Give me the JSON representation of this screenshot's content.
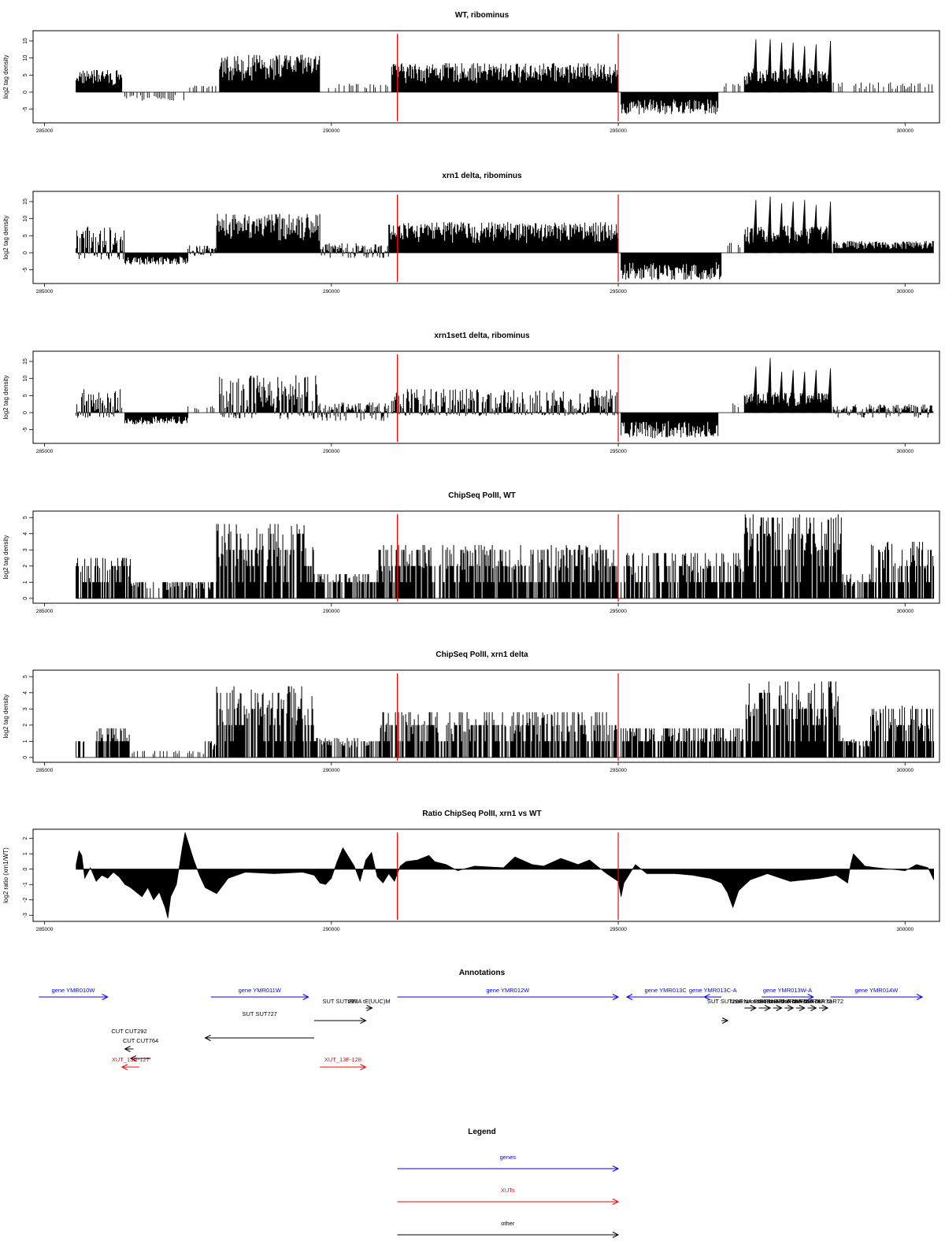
{
  "chart_data": [
    {
      "type": "bar",
      "title": "WT, ribominus",
      "ylabel": "log2 tag density",
      "ylim": [
        -9,
        18
      ],
      "yticks": [
        "-5",
        "0",
        "5",
        "10",
        "15"
      ],
      "xlim": [
        284800,
        300600
      ],
      "xticks": [
        "285000",
        "290000",
        "295000",
        "300000"
      ],
      "markers": [
        291150,
        295000
      ],
      "segments": [
        {
          "from": 285550,
          "to": 286350,
          "min": 0,
          "max": 6.5
        },
        {
          "from": 286400,
          "to": 287500,
          "min": -2.5,
          "max": 0
        },
        {
          "from": 287500,
          "to": 288000,
          "min": 0,
          "max": 2
        },
        {
          "from": 288050,
          "to": 289800,
          "min": 0,
          "max": 11
        },
        {
          "from": 289800,
          "to": 291000,
          "min": 0,
          "max": 2.5
        },
        {
          "from": 291050,
          "to": 295000,
          "min": 0,
          "max": 8.5
        },
        {
          "from": 295050,
          "to": 296750,
          "min": -6.5,
          "max": 0
        },
        {
          "from": 296850,
          "to": 297150,
          "min": 0,
          "max": 3
        },
        {
          "from": 297200,
          "to": 298700,
          "min": 0,
          "max": 7
        },
        {
          "from": 298750,
          "to": 300500,
          "min": 0,
          "max": 3
        }
      ],
      "peaks": [
        {
          "x": 297400,
          "value": 15.5
        },
        {
          "x": 297650,
          "value": 15.5
        },
        {
          "x": 297850,
          "value": 14.5
        },
        {
          "x": 298050,
          "value": 14.5
        },
        {
          "x": 298250,
          "value": 13.5
        },
        {
          "x": 298450,
          "value": 14
        },
        {
          "x": 298700,
          "value": 15
        }
      ]
    },
    {
      "type": "bar",
      "title": "xrn1 delta, ribominus",
      "ylabel": "log2 tag density",
      "ylim": [
        -9,
        18
      ],
      "yticks": [
        "-5",
        "0",
        "5",
        "10",
        "15"
      ],
      "xlim": [
        284800,
        300600
      ],
      "xticks": [
        "285000",
        "290000",
        "295000",
        "300000"
      ],
      "markers": [
        291150,
        295000
      ],
      "segments": [
        {
          "from": 285550,
          "to": 286400,
          "min": -2,
          "max": 8
        },
        {
          "from": 286400,
          "to": 287500,
          "min": -3.5,
          "max": 0
        },
        {
          "from": 287500,
          "to": 288000,
          "min": -1,
          "max": 2.5
        },
        {
          "from": 288000,
          "to": 289800,
          "min": 0,
          "max": 11.5
        },
        {
          "from": 289800,
          "to": 291000,
          "min": -1.5,
          "max": 3
        },
        {
          "from": 291000,
          "to": 295000,
          "min": 0,
          "max": 9
        },
        {
          "from": 295050,
          "to": 296800,
          "min": -8,
          "max": 0
        },
        {
          "from": 296850,
          "to": 297150,
          "min": 0,
          "max": 3
        },
        {
          "from": 297200,
          "to": 298700,
          "min": 0,
          "max": 8
        },
        {
          "from": 298750,
          "to": 300500,
          "min": 0,
          "max": 3.5
        }
      ],
      "peaks": [
        {
          "x": 297400,
          "value": 15.5
        },
        {
          "x": 297650,
          "value": 16.5
        },
        {
          "x": 297850,
          "value": 14.5
        },
        {
          "x": 298050,
          "value": 15
        },
        {
          "x": 298250,
          "value": 15.5
        },
        {
          "x": 298450,
          "value": 14
        },
        {
          "x": 298700,
          "value": 15
        }
      ]
    },
    {
      "type": "bar",
      "title": "xrn1set1 delta, ribominus",
      "ylabel": "log2 tag density",
      "ylim": [
        -9,
        18
      ],
      "yticks": [
        "-5",
        "0",
        "5",
        "10",
        "15"
      ],
      "xlim": [
        284800,
        300600
      ],
      "xticks": [
        "285000",
        "290000",
        "295000",
        "300000"
      ],
      "markers": [
        291150,
        295000
      ],
      "segments": [
        {
          "from": 285550,
          "to": 286350,
          "min": -1.5,
          "max": 7
        },
        {
          "from": 286400,
          "to": 287500,
          "min": -3.5,
          "max": 0
        },
        {
          "from": 287500,
          "to": 288000,
          "min": 0,
          "max": 2
        },
        {
          "from": 288050,
          "to": 289800,
          "min": -2,
          "max": 11
        },
        {
          "from": 289800,
          "to": 291000,
          "min": -2.5,
          "max": 3
        },
        {
          "from": 291050,
          "to": 295000,
          "min": -1,
          "max": 7
        },
        {
          "from": 295050,
          "to": 296750,
          "min": -7.5,
          "max": 0
        },
        {
          "from": 296850,
          "to": 297150,
          "min": 0,
          "max": 3
        },
        {
          "from": 297200,
          "to": 298700,
          "min": 0,
          "max": 6
        },
        {
          "from": 298750,
          "to": 300500,
          "min": -1.5,
          "max": 2.5
        }
      ],
      "peaks": [
        {
          "x": 297400,
          "value": 13.5
        },
        {
          "x": 297650,
          "value": 16
        },
        {
          "x": 297850,
          "value": 12
        },
        {
          "x": 298050,
          "value": 12.5
        },
        {
          "x": 298250,
          "value": 12
        },
        {
          "x": 298450,
          "value": 12.5
        },
        {
          "x": 298700,
          "value": 13
        }
      ]
    },
    {
      "type": "bar",
      "title": "ChipSeq PolII, WT",
      "ylabel": "log2 tag density",
      "ylim": [
        -0.3,
        5.4
      ],
      "yticks": [
        "0",
        "1",
        "2",
        "3",
        "4",
        "5"
      ],
      "xlim": [
        284800,
        300600
      ],
      "xticks": [
        "285000",
        "290000",
        "295000",
        "300000"
      ],
      "markers": [
        291150,
        295000
      ],
      "segments": [
        {
          "from": 285550,
          "to": 286500,
          "min": 0,
          "max": 2.5
        },
        {
          "from": 286500,
          "to": 287500,
          "min": 0,
          "max": 1
        },
        {
          "from": 287500,
          "to": 288000,
          "min": 0,
          "max": 1
        },
        {
          "from": 288000,
          "to": 289700,
          "min": 0,
          "max": 4.6
        },
        {
          "from": 289700,
          "to": 290800,
          "min": 0,
          "max": 1.5
        },
        {
          "from": 290800,
          "to": 295000,
          "min": 0,
          "max": 3.3
        },
        {
          "from": 295050,
          "to": 297200,
          "min": 0,
          "max": 2.8
        },
        {
          "from": 297200,
          "to": 298900,
          "min": 0,
          "max": 5.2
        },
        {
          "from": 298900,
          "to": 299400,
          "min": 0,
          "max": 1.5
        },
        {
          "from": 299400,
          "to": 300500,
          "min": 0,
          "max": 3.5
        }
      ],
      "peaks": []
    },
    {
      "type": "bar",
      "title": "ChipSeq PolII, xrn1 delta",
      "ylabel": "log2 tag density",
      "ylim": [
        -0.3,
        5.4
      ],
      "yticks": [
        "0",
        "1",
        "2",
        "3",
        "4",
        "5"
      ],
      "xlim": [
        284800,
        300600
      ],
      "xticks": [
        "285000",
        "290000",
        "295000",
        "300000"
      ],
      "markers": [
        291150,
        295000
      ],
      "segments": [
        {
          "from": 285550,
          "to": 285700,
          "min": 0,
          "max": 1.3
        },
        {
          "from": 285900,
          "to": 286500,
          "min": 0,
          "max": 1.8
        },
        {
          "from": 286500,
          "to": 287800,
          "min": 0,
          "max": 0.4
        },
        {
          "from": 287800,
          "to": 288000,
          "min": 0,
          "max": 1
        },
        {
          "from": 288000,
          "to": 289700,
          "min": 0,
          "max": 4.4
        },
        {
          "from": 289700,
          "to": 290800,
          "min": 0,
          "max": 1.2
        },
        {
          "from": 290800,
          "to": 295000,
          "min": 0,
          "max": 2.8
        },
        {
          "from": 295050,
          "to": 297200,
          "min": 0,
          "max": 1.8
        },
        {
          "from": 297200,
          "to": 298900,
          "min": 0,
          "max": 4.7
        },
        {
          "from": 298900,
          "to": 299400,
          "min": 0,
          "max": 1.2
        },
        {
          "from": 299400,
          "to": 300500,
          "min": 0,
          "max": 3.2
        }
      ],
      "peaks": []
    },
    {
      "type": "area",
      "title": "Ratio ChipSeq PolII, xrn1 vs WT",
      "ylabel": "log2 ratio (xrn1/WT)",
      "ylim": [
        -3.4,
        2.6
      ],
      "yticks": [
        "-3",
        "-2",
        "-1",
        "0",
        "1",
        "2"
      ],
      "xlim": [
        284800,
        300600
      ],
      "xticks": [
        "285000",
        "290000",
        "295000",
        "300000"
      ],
      "markers": [
        291150,
        295000
      ],
      "x": [
        285550,
        285600,
        285650,
        285700,
        285800,
        285900,
        286000,
        286100,
        286200,
        286300,
        286400,
        286500,
        286600,
        286700,
        286800,
        286900,
        287000,
        287100,
        287150,
        287200,
        287300,
        287400,
        287450,
        287500,
        287600,
        287700,
        287800,
        288000,
        288200,
        288500,
        289000,
        289500,
        289700,
        289800,
        289900,
        290000,
        290100,
        290200,
        290300,
        290400,
        290500,
        290600,
        290700,
        290800,
        290900,
        291000,
        291100,
        291200,
        291300,
        291500,
        291700,
        291800,
        292000,
        292200,
        292500,
        293000,
        293200,
        293500,
        293700,
        294000,
        294300,
        294500,
        294800,
        295000,
        295050,
        295100,
        295200,
        295300,
        295500,
        296000,
        296300,
        296600,
        296800,
        296900,
        297000,
        297100,
        297300,
        297600,
        298000,
        298500,
        298800,
        299000,
        299050,
        299100,
        299200,
        299300,
        299500,
        300000,
        300200,
        300400,
        300500
      ],
      "values": [
        0.3,
        1.2,
        0.9,
        -0.6,
        0.1,
        -0.8,
        -0.4,
        -0.6,
        -0.2,
        -0.5,
        -1.0,
        -1.2,
        -1.5,
        -1.8,
        -1.2,
        -2.0,
        -1.5,
        -2.5,
        -3.2,
        -1.8,
        -1.0,
        1.4,
        2.4,
        1.8,
        0.6,
        -0.4,
        -1.2,
        -1.6,
        -0.6,
        -0.2,
        -0.3,
        -0.2,
        -0.4,
        -0.9,
        -1.0,
        -0.6,
        0.5,
        1.4,
        0.8,
        0.2,
        -0.8,
        0.6,
        1.1,
        -0.5,
        -0.9,
        -0.3,
        -0.8,
        0.2,
        0.5,
        0.6,
        0.9,
        0.5,
        0.3,
        -0.1,
        0.2,
        0.1,
        0.8,
        0.3,
        0.2,
        0.7,
        0.3,
        0.6,
        -0.3,
        -0.8,
        -1.8,
        -0.9,
        -0.3,
        0.3,
        -0.3,
        -0.3,
        -0.4,
        -0.6,
        -0.9,
        -1.5,
        -2.5,
        -1.4,
        -0.7,
        -0.3,
        -0.8,
        -0.6,
        -0.4,
        -0.9,
        0.3,
        1.0,
        0.6,
        0.2,
        0.1,
        -0.1,
        0.3,
        0.1,
        -0.7
      ]
    }
  ],
  "annotations": {
    "title": "Annotations",
    "items": [
      {
        "label": "gene YMR010W",
        "kind": "gene",
        "start": 284900,
        "end": 286100,
        "row": 0,
        "direction": "right",
        "labelRow": 0
      },
      {
        "label": "gene YMR011W",
        "kind": "gene",
        "start": 287900,
        "end": 289600,
        "row": 0,
        "direction": "right",
        "labelRow": 0
      },
      {
        "label": "gene YMR012W",
        "kind": "gene",
        "start": 291150,
        "end": 295000,
        "row": 0,
        "direction": "right",
        "labelRow": 0
      },
      {
        "label": "gene YMR013C",
        "kind": "gene",
        "start": 295150,
        "end": 296500,
        "row": 0,
        "direction": "left",
        "labelRow": 0
      },
      {
        "label": "gene YMR013C-A",
        "kind": "gene",
        "start": 296500,
        "end": 296800,
        "row": 0,
        "direction": "left",
        "labelRow": 0
      },
      {
        "label": "gene YMR013W-A",
        "kind": "gene",
        "start": 297500,
        "end": 298400,
        "row": 0,
        "direction": "right",
        "labelRow": 0
      },
      {
        "label": "gene YMR014W",
        "kind": "gene",
        "start": 298700,
        "end": 300300,
        "row": 0,
        "direction": "right",
        "labelRow": 0
      },
      {
        "label": "tRNA tE(UUC)M",
        "kind": "other",
        "start": 290600,
        "end": 290700,
        "row": 1,
        "direction": "right",
        "labelRow": 1
      },
      {
        "label": "snoRNA snR78",
        "kind": "other",
        "start": 297200,
        "end": 297400,
        "row": 1,
        "direction": "right",
        "labelRow": 1
      },
      {
        "label": "snoRNA snR77",
        "kind": "other",
        "start": 297450,
        "end": 297650,
        "row": 1,
        "direction": "right",
        "labelRow": 1
      },
      {
        "label": "snoRNA snR76",
        "kind": "other",
        "start": 297700,
        "end": 297850,
        "row": 1,
        "direction": "right",
        "labelRow": 1
      },
      {
        "label": "snoRNA snR75",
        "kind": "other",
        "start": 297900,
        "end": 298050,
        "row": 1,
        "direction": "right",
        "labelRow": 1
      },
      {
        "label": "snoRNA snR74",
        "kind": "other",
        "start": 298100,
        "end": 298250,
        "row": 1,
        "direction": "right",
        "labelRow": 1
      },
      {
        "label": "snoRNA snR73",
        "kind": "other",
        "start": 298300,
        "end": 298450,
        "row": 1,
        "direction": "right",
        "labelRow": 1
      },
      {
        "label": "snoRNA snR72",
        "kind": "other",
        "start": 298500,
        "end": 298650,
        "row": 1,
        "direction": "right",
        "labelRow": 1
      },
      {
        "label": "SUT SUT727",
        "kind": "other",
        "start": 287800,
        "end": 289700,
        "row": 3,
        "direction": "left",
        "labelRow": 2
      },
      {
        "label": "SUT SUT297",
        "kind": "other",
        "start": 289700,
        "end": 290600,
        "row": 2,
        "direction": "right",
        "labelRow": 1
      },
      {
        "label": "SUT SUT298",
        "kind": "other",
        "start": 296800,
        "end": 296900,
        "row": 2,
        "direction": "right",
        "labelRow": 1
      },
      {
        "label": "CUT CUT292",
        "kind": "other",
        "start": 286400,
        "end": 286550,
        "row": 4,
        "direction": "left",
        "labelRow": 3
      },
      {
        "label": "CUT CUT764",
        "kind": "other",
        "start": 286500,
        "end": 286850,
        "row": 5,
        "direction": "left",
        "labelRow": 4
      },
      {
        "label": "XUT_13R-127",
        "kind": "xut",
        "start": 286350,
        "end": 286650,
        "row": 6,
        "direction": "left",
        "labelRow": 5
      },
      {
        "label": "XUT_13F-128",
        "kind": "xut",
        "start": 289800,
        "end": 290600,
        "row": 6,
        "direction": "right",
        "labelRow": 5
      }
    ]
  },
  "legend": {
    "title": "Legend",
    "items": [
      {
        "label": "genes",
        "kind": "gene"
      },
      {
        "label": "XUTs",
        "kind": "xut"
      },
      {
        "label": "other",
        "kind": "other"
      }
    ]
  },
  "colors": {
    "gene": "#0000ff",
    "xut": "#ff0000",
    "other": "#000000",
    "marker": "#ff0000",
    "signal": "#000000"
  }
}
